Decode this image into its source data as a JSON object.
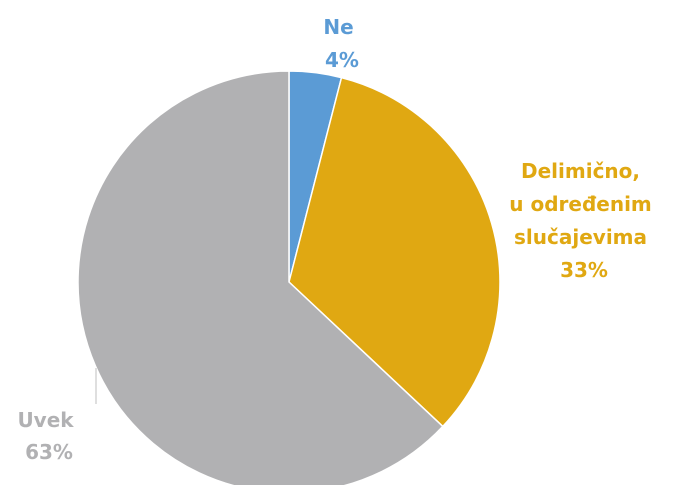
{
  "chart_data": {
    "type": "pie",
    "title": "",
    "slices": [
      {
        "label_lines": [
          "Ne"
        ],
        "value": 4,
        "value_label": "4%",
        "color": "#5b9bd5"
      },
      {
        "label_lines": [
          "Delimično,",
          "u određenim",
          "slučajevima"
        ],
        "value": 33,
        "value_label": "33%",
        "color": "#e0a812"
      },
      {
        "label_lines": [
          "Uvek"
        ],
        "value": 63,
        "value_label": "63%",
        "color": "#b1b1b3"
      }
    ],
    "start_angle_deg": 0,
    "direction": "clockwise",
    "legend": "none",
    "data_labels": "outside"
  }
}
